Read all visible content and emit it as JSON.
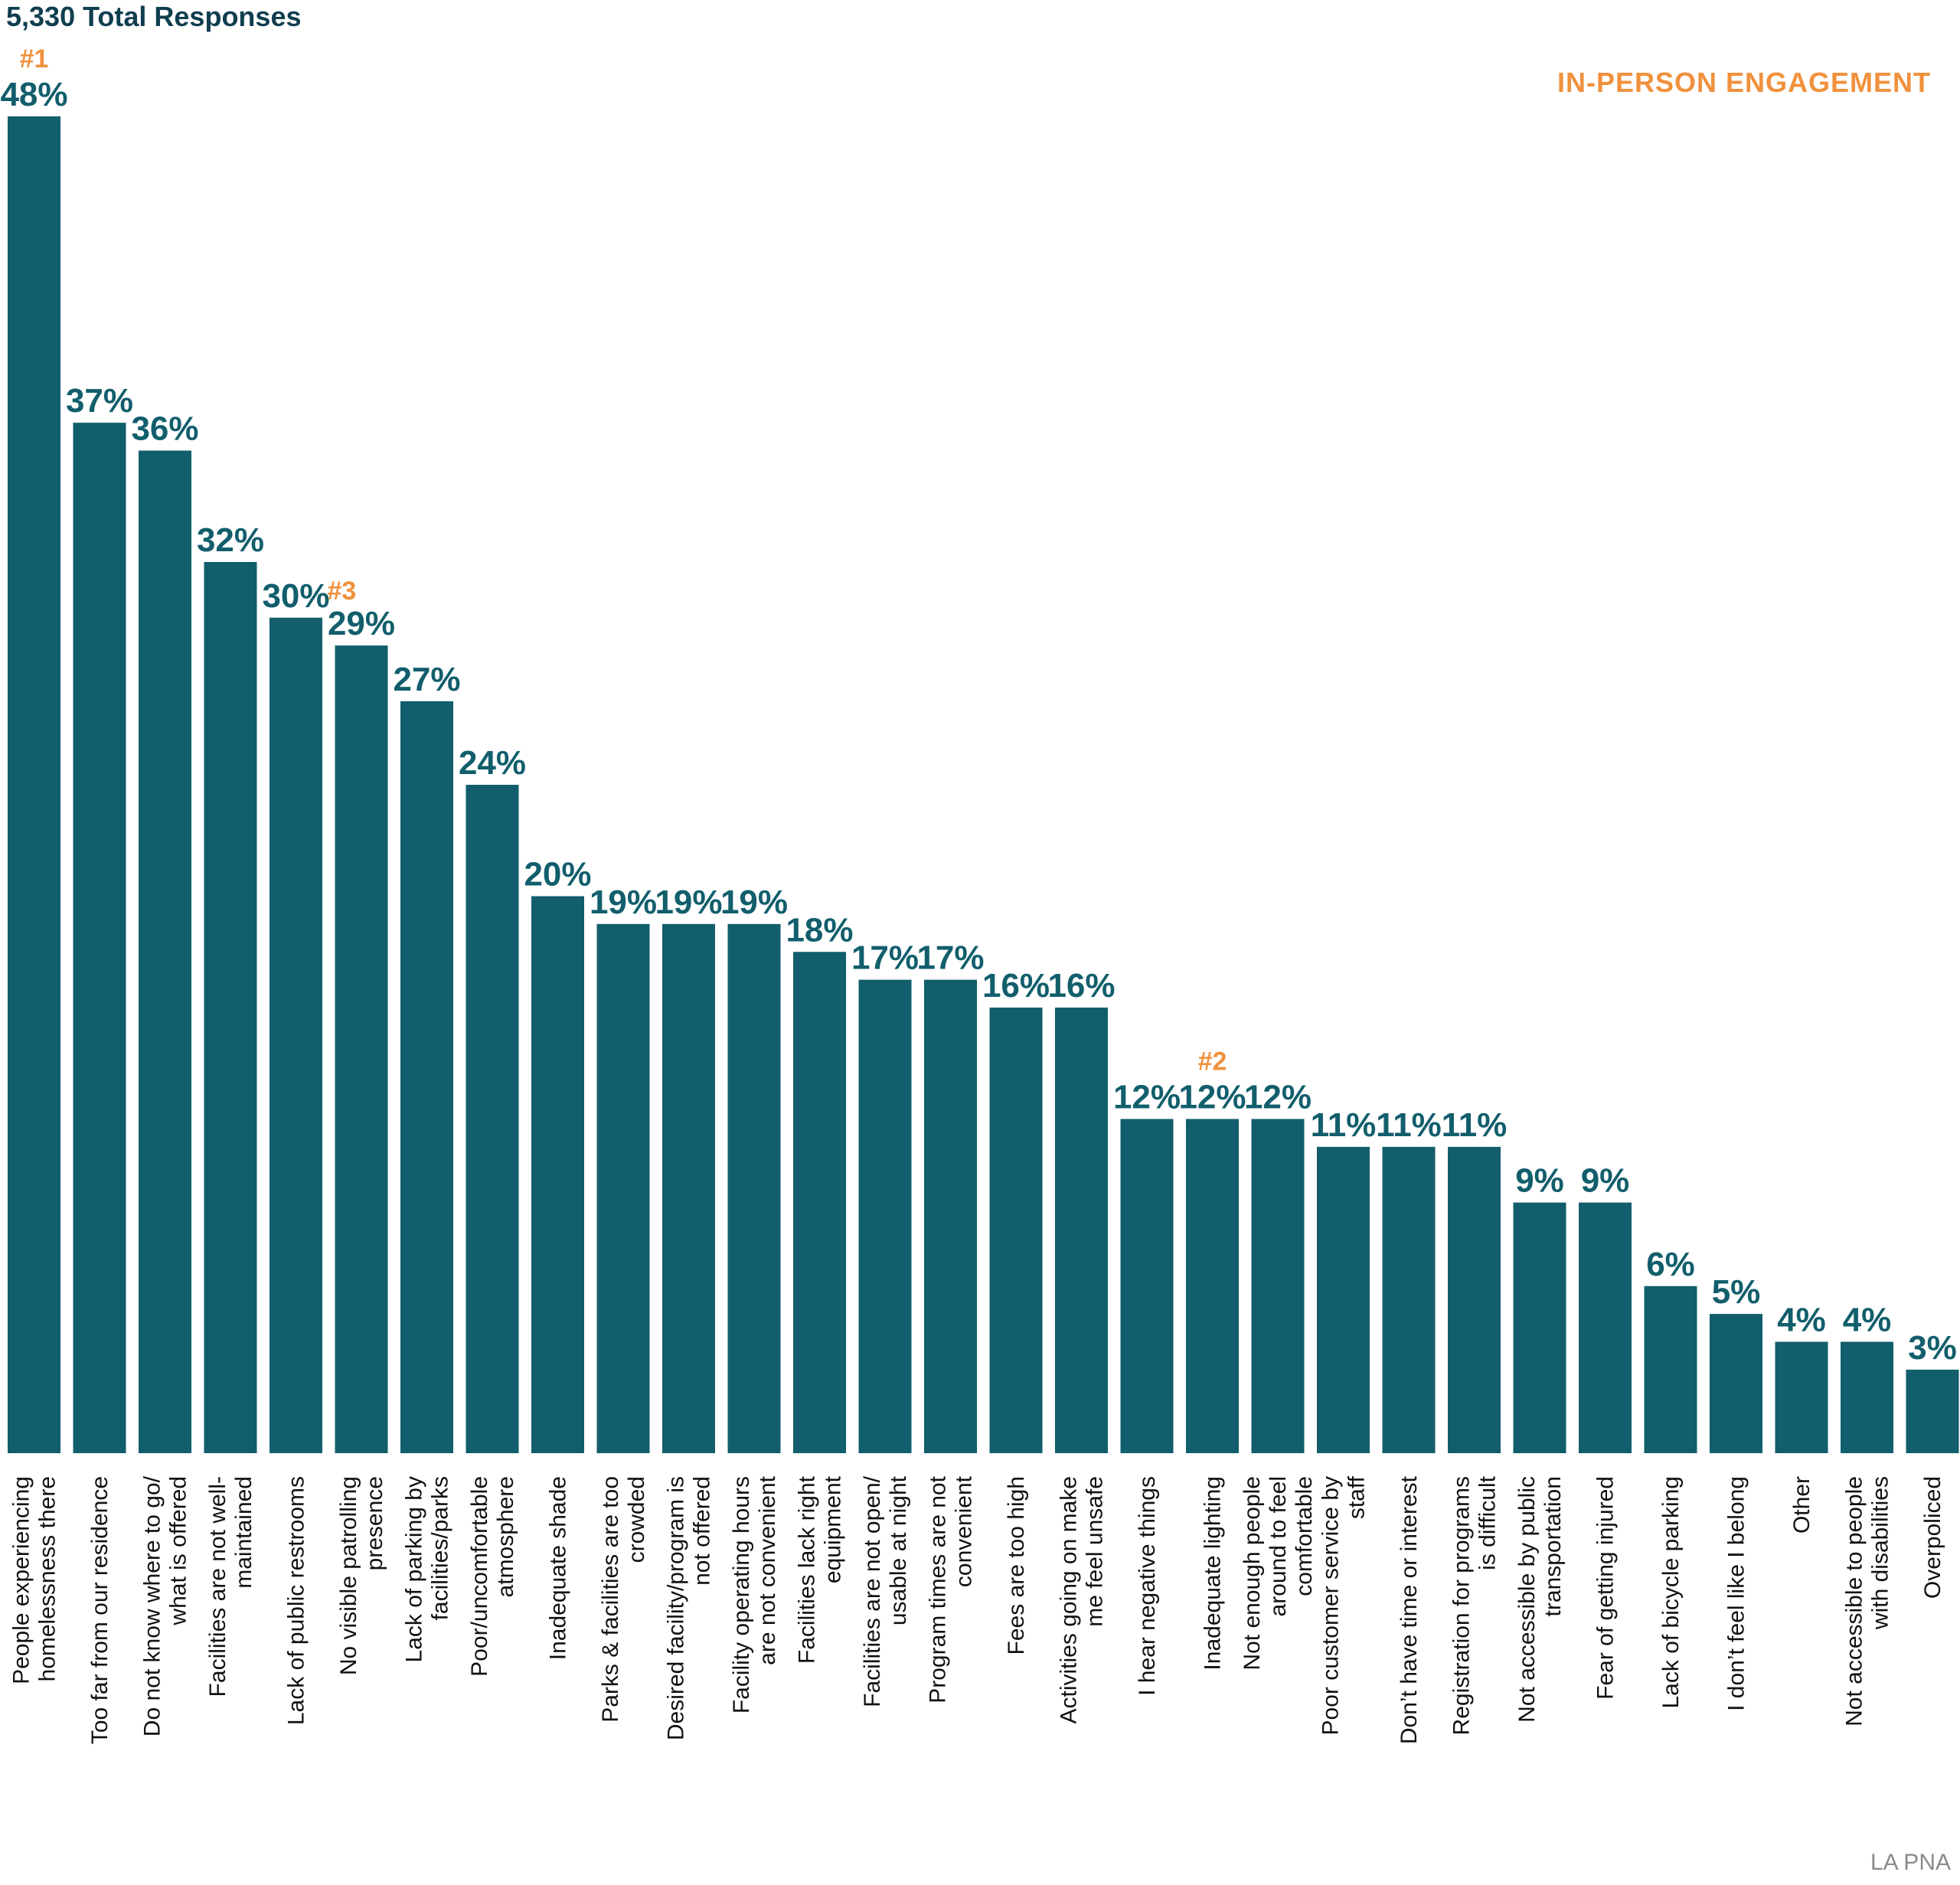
{
  "header": {
    "total": "5,330 Total Responses",
    "engagement": "IN-PERSON ENGAGEMENT"
  },
  "footer": {
    "source": "LA PNA"
  },
  "colors": {
    "bar": "#125e6c",
    "value_text": "#125e6c",
    "accent": "#f0913d",
    "title": "#0f3e4f"
  },
  "chart_data": {
    "type": "bar",
    "ylim": [
      0,
      48
    ],
    "grid": false,
    "categories": [
      [
        "People experiencing",
        "homelessness there"
      ],
      [
        "Too far from our residence"
      ],
      [
        "Do not know where to go/",
        "what is offered"
      ],
      [
        "Facilities are not well-",
        "maintained"
      ],
      [
        "Lack of public restrooms"
      ],
      [
        "No visible patrolling",
        "presence"
      ],
      [
        "Lack of parking by",
        "facilities/parks"
      ],
      [
        "Poor/uncomfortable",
        "atmosphere"
      ],
      [
        "Inadequate shade"
      ],
      [
        "Parks & facilities are too",
        "crowded"
      ],
      [
        "Desired facility/program is",
        "not offered"
      ],
      [
        "Facility operating hours",
        "are not convenient"
      ],
      [
        "Facilities lack right",
        "equipment"
      ],
      [
        "Facilities are not open/",
        "usable at night"
      ],
      [
        "Program times are not",
        "convenient"
      ],
      [
        "Fees are too high"
      ],
      [
        "Activities going on make",
        "me feel unsafe"
      ],
      [
        "I hear negative things"
      ],
      [
        "Inadequate lighting"
      ],
      [
        "Not enough people",
        "around to feel",
        "comfortable"
      ],
      [
        "Poor customer service by",
        "staff"
      ],
      [
        "Don’t have time or interest"
      ],
      [
        "Registration for programs",
        "is difficult"
      ],
      [
        "Not accessible by public",
        "transportation"
      ],
      [
        "Fear of getting injured"
      ],
      [
        "Lack of bicycle parking"
      ],
      [
        "I don’t feel like I belong"
      ],
      [
        "Other"
      ],
      [
        "Not accessible to people",
        "with disabilities"
      ],
      [
        "Overpoliced"
      ]
    ],
    "values": [
      48,
      37,
      36,
      32,
      30,
      29,
      27,
      24,
      20,
      19,
      19,
      19,
      18,
      17,
      17,
      16,
      16,
      12,
      12,
      12,
      11,
      11,
      11,
      9,
      9,
      6,
      5,
      4,
      4,
      3
    ],
    "value_labels": [
      "48%",
      "37%",
      "36%",
      "32%",
      "30%",
      "29%",
      "27%",
      "24%",
      "20%",
      "19%",
      "19%",
      "19%",
      "18%",
      "17%",
      "17%",
      "16%",
      "16%",
      "12%",
      "12%",
      "12%",
      "11%",
      "11%",
      "11%",
      "9%",
      "9%",
      "6%",
      "5%",
      "4%",
      "4%",
      "3%"
    ],
    "rank_annotations": [
      {
        "index": 0,
        "label": "#1"
      },
      {
        "index": 18,
        "label": "#2"
      },
      {
        "index": 5,
        "label": "#3"
      }
    ]
  }
}
